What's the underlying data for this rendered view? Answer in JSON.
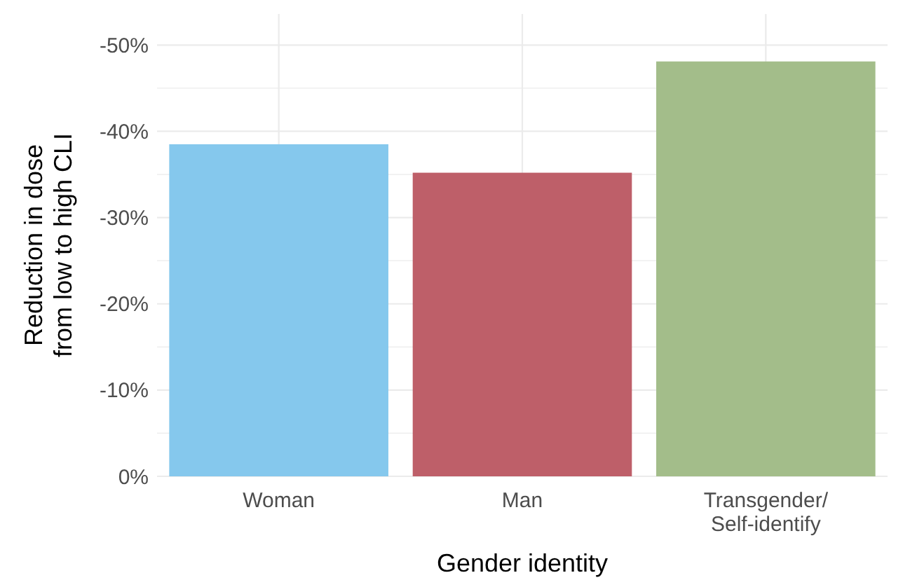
{
  "chart_data": {
    "type": "bar",
    "xlabel": "Gender identity",
    "ylabel": "Reduction in dose\nfrom low to high CLI",
    "categories": [
      "Woman",
      "Man",
      "Transgender/\nSelf-identify"
    ],
    "values": [
      -38.5,
      -35.2,
      -48.1
    ],
    "colors": [
      "#85c8ed",
      "#be5f69",
      "#a3bd8a"
    ],
    "ylim": [
      0,
      -53.6
    ],
    "yticks": [
      {
        "value": 0,
        "label": "0%"
      },
      {
        "value": -5,
        "label": null
      },
      {
        "value": -10,
        "label": "-10%"
      },
      {
        "value": -15,
        "label": null
      },
      {
        "value": -20,
        "label": "-20%"
      },
      {
        "value": -25,
        "label": null
      },
      {
        "value": -30,
        "label": "-30%"
      },
      {
        "value": -35,
        "label": null
      },
      {
        "value": -40,
        "label": "-40%"
      },
      {
        "value": -45,
        "label": null
      },
      {
        "value": -50,
        "label": "-50%"
      }
    ],
    "grid": true
  }
}
